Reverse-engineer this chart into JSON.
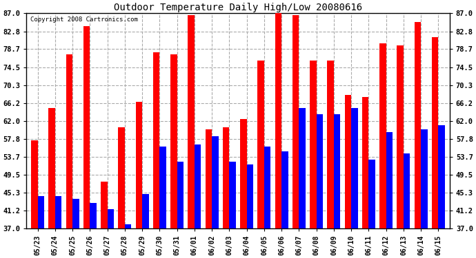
{
  "title": "Outdoor Temperature Daily High/Low 20080616",
  "copyright": "Copyright 2008 Cartronics.com",
  "categories": [
    "05/23",
    "05/24",
    "05/25",
    "05/26",
    "05/27",
    "05/28",
    "05/29",
    "05/30",
    "05/31",
    "06/01",
    "06/02",
    "06/03",
    "06/04",
    "06/05",
    "06/06",
    "06/07",
    "06/08",
    "06/09",
    "06/10",
    "06/11",
    "06/12",
    "06/13",
    "06/14",
    "06/15"
  ],
  "highs": [
    57.5,
    65.0,
    77.5,
    84.0,
    48.0,
    60.5,
    66.5,
    78.0,
    77.5,
    86.5,
    60.0,
    60.5,
    62.5,
    76.0,
    87.0,
    86.5,
    76.0,
    76.0,
    68.0,
    67.5,
    80.0,
    79.5,
    85.0,
    81.5
  ],
  "lows": [
    44.5,
    44.5,
    44.0,
    43.0,
    41.5,
    38.0,
    45.0,
    56.0,
    52.5,
    56.5,
    58.5,
    52.5,
    52.0,
    56.0,
    55.0,
    65.0,
    63.5,
    63.5,
    65.0,
    53.0,
    59.5,
    54.5,
    60.0,
    61.0
  ],
  "high_color": "#ff0000",
  "low_color": "#0000ff",
  "background_color": "#ffffff",
  "grid_color": "#aaaaaa",
  "ymin": 37.0,
  "ymax": 87.0,
  "yticks": [
    37.0,
    41.2,
    45.3,
    49.5,
    53.7,
    57.8,
    62.0,
    66.2,
    70.3,
    74.5,
    78.7,
    82.8,
    87.0
  ],
  "ytick_labels": [
    "37.0",
    "41.2",
    "45.3",
    "49.5",
    "53.7",
    "57.8",
    "62.0",
    "66.2",
    "70.3",
    "74.5",
    "78.7",
    "82.8",
    "87.0"
  ],
  "bar_width": 0.38,
  "figwidth": 6.9,
  "figheight": 3.75,
  "dpi": 100
}
